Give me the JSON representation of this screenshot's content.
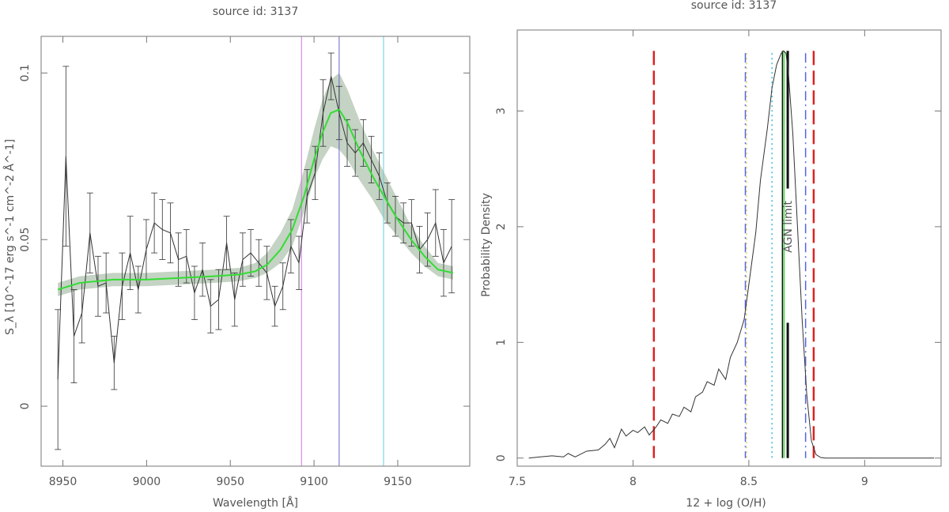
{
  "chart_data": [
    {
      "type": "line",
      "title": "source id: 3137",
      "xlabel": "Wavelength [Å]",
      "ylabel": "S_λ [10^-17 erg s^-1 cm^-2 Å^-1]",
      "xlim": [
        8937,
        9193
      ],
      "ylim": [
        -0.018,
        0.111
      ],
      "xticks": [
        8950,
        9000,
        9050,
        9100,
        9150
      ],
      "yticks": [
        0,
        0.05,
        0.1
      ],
      "ytick_labels": [
        "0",
        "0.05",
        "0.1"
      ],
      "grid": false,
      "vlines": [
        {
          "x": 9092.5,
          "color": "#cc77dd"
        },
        {
          "x": 9115,
          "color": "#6666cc"
        },
        {
          "x": 9141.5,
          "color": "#66ccdd"
        }
      ],
      "series": [
        {
          "kind": "data_with_errors",
          "color": "#333333",
          "x": [
            8947,
            8951.8,
            8956.6,
            8961.4,
            8966.2,
            8971,
            8975.8,
            8980.6,
            8985.4,
            8990.2,
            8995,
            8999.8,
            9004.6,
            9009.4,
            9014.2,
            9019,
            9023.8,
            9028.6,
            9033.4,
            9038.2,
            9043,
            9047.8,
            9052.6,
            9057.4,
            9062.2,
            9067,
            9071.8,
            9076.6,
            9081.4,
            9086.2,
            9091,
            9095.8,
            9100.6,
            9105.4,
            9110.2,
            9115,
            9119.8,
            9124.6,
            9129.4,
            9134.2,
            9139,
            9143.8,
            9148.6,
            9153.4,
            9158.2,
            9163,
            9167.8,
            9172.6,
            9177.4,
            9182.2
          ],
          "y": [
            0.008,
            0.075,
            0.021,
            0.028,
            0.052,
            0.036,
            0.037,
            0.013,
            0.036,
            0.046,
            0.035,
            0.047,
            0.055,
            0.053,
            0.052,
            0.044,
            0.045,
            0.034,
            0.041,
            0.03,
            0.032,
            0.049,
            0.032,
            0.044,
            0.046,
            0.043,
            0.04,
            0.03,
            0.036,
            0.048,
            0.043,
            0.063,
            0.07,
            0.088,
            0.099,
            0.088,
            0.079,
            0.076,
            0.079,
            0.074,
            0.069,
            0.061,
            0.057,
            0.055,
            0.055,
            0.047,
            0.05,
            0.055,
            0.043,
            0.048
          ],
          "err": [
            0.021,
            0.027,
            0.014,
            0.009,
            0.012,
            0.009,
            0.009,
            0.008,
            0.01,
            0.011,
            0.007,
            0.009,
            0.009,
            0.009,
            0.009,
            0.008,
            0.008,
            0.008,
            0.008,
            0.008,
            0.009,
            0.008,
            0.008,
            0.008,
            0.007,
            0.007,
            0.008,
            0.006,
            0.007,
            0.008,
            0.008,
            0.008,
            0.008,
            0.01,
            0.007,
            0.008,
            0.007,
            0.007,
            0.007,
            0.007,
            0.007,
            0.006,
            0.006,
            0.006,
            0.007,
            0.007,
            0.008,
            0.01,
            0.01,
            0.014
          ]
        },
        {
          "kind": "model_with_band",
          "color": "#33dd33",
          "band_color": "#c4d3c4",
          "x": [
            8947,
            8960,
            8980,
            9000,
            9020,
            9040,
            9055,
            9065,
            9072,
            9080,
            9087,
            9094,
            9100,
            9105,
            9110,
            9115,
            9120,
            9127,
            9135,
            9143,
            9150,
            9158,
            9166,
            9174,
            9183
          ],
          "y": [
            0.035,
            0.037,
            0.038,
            0.038,
            0.0385,
            0.039,
            0.0395,
            0.0405,
            0.0425,
            0.047,
            0.053,
            0.063,
            0.074,
            0.082,
            0.088,
            0.089,
            0.085,
            0.077,
            0.069,
            0.062,
            0.056,
            0.05,
            0.045,
            0.041,
            0.04
          ],
          "lo": [
            0.033,
            0.035,
            0.036,
            0.036,
            0.0365,
            0.037,
            0.0375,
            0.0385,
            0.04,
            0.043,
            0.048,
            0.058,
            0.068,
            0.074,
            0.078,
            0.077,
            0.074,
            0.068,
            0.062,
            0.055,
            0.051,
            0.046,
            0.042,
            0.039,
            0.038
          ],
          "hi": [
            0.037,
            0.039,
            0.04,
            0.04,
            0.0405,
            0.041,
            0.0415,
            0.043,
            0.046,
            0.052,
            0.059,
            0.071,
            0.083,
            0.092,
            0.098,
            0.1,
            0.095,
            0.086,
            0.077,
            0.069,
            0.062,
            0.054,
            0.048,
            0.043,
            0.042
          ]
        }
      ]
    },
    {
      "type": "line",
      "title": "source id: 3137",
      "xlabel": "12 + log (O/H)",
      "ylabel": "Probability Density",
      "xlim": [
        7.5,
        9.33
      ],
      "ylim": [
        -0.07,
        3.7
      ],
      "xticks": [
        7.5,
        8,
        8.5,
        9
      ],
      "xtick_labels": [
        "7.5",
        "8",
        "8.5",
        "9"
      ],
      "yticks": [
        0,
        1,
        2,
        3
      ],
      "grid": false,
      "annotation": "AGN limit",
      "annotation_x": 8.665,
      "annotation_y": 2.0,
      "pdf": {
        "color": "#333333",
        "x": [
          7.55,
          7.6,
          7.65,
          7.7,
          7.72,
          7.75,
          7.8,
          7.85,
          7.88,
          7.9,
          7.92,
          7.95,
          7.97,
          8.0,
          8.02,
          8.05,
          8.07,
          8.1,
          8.12,
          8.15,
          8.17,
          8.2,
          8.22,
          8.25,
          8.27,
          8.3,
          8.32,
          8.35,
          8.37,
          8.4,
          8.42,
          8.45,
          8.48,
          8.5,
          8.53,
          8.55,
          8.58,
          8.6,
          8.62,
          8.64,
          8.65,
          8.66,
          8.67,
          8.69,
          8.71,
          8.73,
          8.75,
          8.77,
          8.79,
          8.81,
          8.83,
          8.9,
          9.0,
          9.1,
          9.2,
          9.3
        ],
        "y": [
          0,
          0.01,
          0.02,
          0.01,
          0.04,
          0.01,
          0.06,
          0.07,
          0.12,
          0.17,
          0.09,
          0.25,
          0.19,
          0.24,
          0.22,
          0.27,
          0.2,
          0.27,
          0.33,
          0.3,
          0.38,
          0.36,
          0.44,
          0.4,
          0.53,
          0.57,
          0.66,
          0.63,
          0.77,
          0.68,
          0.87,
          1.0,
          1.2,
          1.5,
          1.95,
          2.4,
          2.85,
          3.2,
          3.4,
          3.5,
          3.52,
          3.5,
          3.35,
          2.8,
          2.0,
          1.2,
          0.55,
          0.15,
          0.03,
          0.005,
          0,
          0,
          0,
          0,
          0,
          0
        ]
      },
      "vlines": [
        {
          "x": 8.09,
          "ymax": 3.52,
          "color": "#dd2222",
          "style": "dashed",
          "width": 2.5
        },
        {
          "x": 8.78,
          "ymax": 3.52,
          "color": "#dd2222",
          "style": "dashed",
          "width": 2.5
        },
        {
          "x": 8.485,
          "ymax": 3.5,
          "color": "#5566dd",
          "style": "dashdot",
          "width": 1.5
        },
        {
          "x": 8.745,
          "ymax": 3.5,
          "color": "#5566dd",
          "style": "dashdot",
          "width": 1.5
        },
        {
          "x": 8.49,
          "ymax": 3.5,
          "color": "#ccbb22",
          "style": "dotted",
          "width": 1
        },
        {
          "x": 8.6,
          "ymax": 3.5,
          "color": "#33bbdd",
          "style": "dotted",
          "width": 1.5
        },
        {
          "x": 8.645,
          "ymax": 3.52,
          "color": "#111111",
          "style": "solid",
          "width": 1.5
        },
        {
          "x": 8.652,
          "ymax": 3.52,
          "color": "#33dd33",
          "style": "solid",
          "width": 1.5
        },
        {
          "x": 8.668,
          "ymax": 3.52,
          "color": "#111111",
          "style": "segments",
          "width": 3
        }
      ]
    }
  ]
}
